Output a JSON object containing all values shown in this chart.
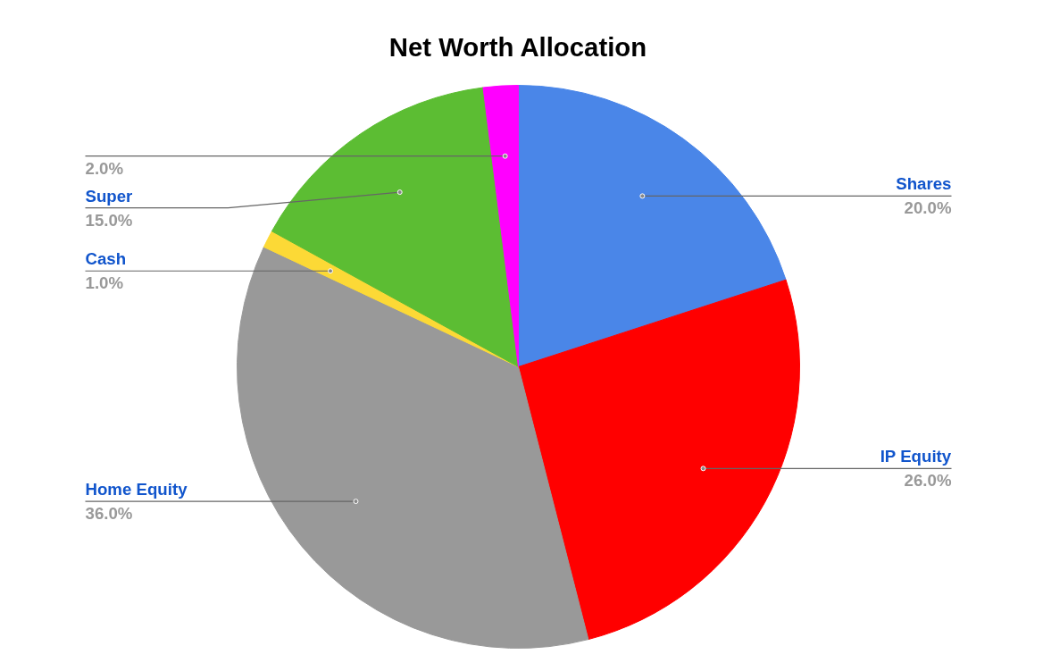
{
  "chart_data": {
    "type": "pie",
    "title": "Net Worth Allocation",
    "categories": [
      "Shares",
      "IP Equity",
      "Home Equity",
      "Cash",
      "Super",
      null
    ],
    "values": [
      20,
      26,
      36,
      1,
      15,
      2
    ],
    "colors": [
      "#4a86e8",
      "#ff0000",
      "#999999",
      "#fcd936",
      "#5cbd33",
      "#ff00ff"
    ],
    "value_labels": [
      "20.0%",
      "26.0%",
      "36.0%",
      "1.0%",
      "15.0%",
      "2.0%"
    ]
  }
}
